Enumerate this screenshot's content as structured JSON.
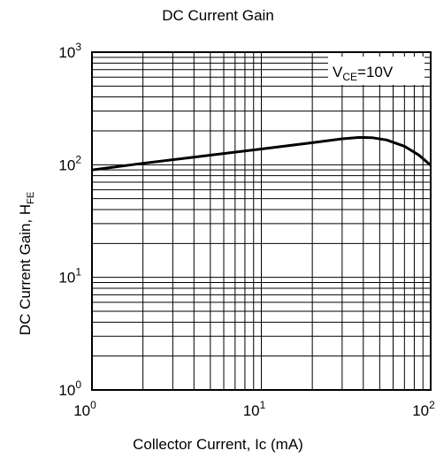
{
  "chart_data": {
    "type": "line",
    "title": "DC Current Gain",
    "xlabel": "Collector Current, Ic (mA)",
    "ylabel_main": "DC Current Gain, H",
    "ylabel_sub": "FE",
    "x_scale": "log",
    "y_scale": "log",
    "xlim": [
      1,
      100
    ],
    "ylim": [
      1,
      1000
    ],
    "grid": true,
    "x_ticks": [
      {
        "base": "10",
        "exp": "0",
        "value": 1
      },
      {
        "base": "10",
        "exp": "1",
        "value": 10
      },
      {
        "base": "10",
        "exp": "2",
        "value": 100
      }
    ],
    "y_ticks": [
      {
        "base": "10",
        "exp": "0",
        "value": 1
      },
      {
        "base": "10",
        "exp": "1",
        "value": 10
      },
      {
        "base": "10",
        "exp": "2",
        "value": 100
      },
      {
        "base": "10",
        "exp": "3",
        "value": 1000
      }
    ],
    "annotation": {
      "main": "V",
      "sub": "CE",
      "rest": "=10V"
    },
    "series": [
      {
        "x": [
          1,
          2,
          4,
          10,
          20,
          30,
          38,
          45,
          55,
          70,
          85,
          100
        ],
        "y": [
          90,
          103,
          117,
          138,
          157,
          170,
          175,
          174,
          166,
          146,
          122,
          99
        ]
      }
    ]
  }
}
